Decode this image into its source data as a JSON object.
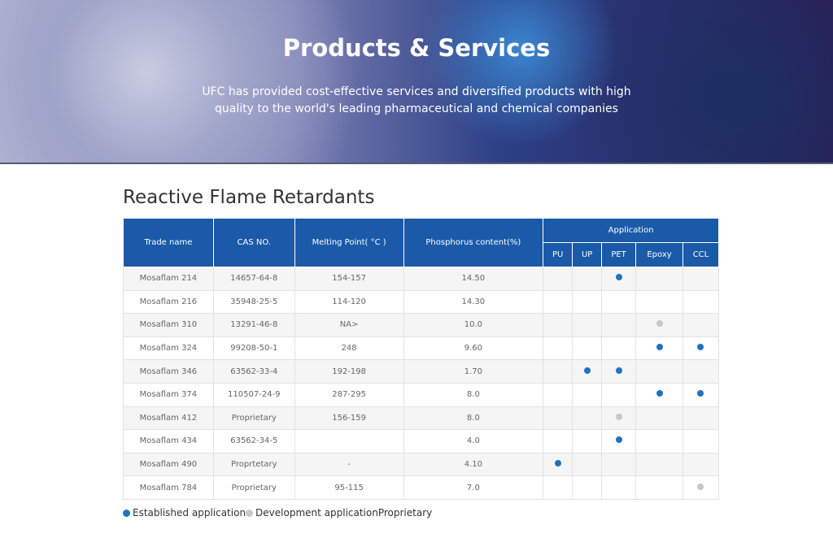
{
  "header": {
    "title": "Products & Services",
    "subtitle_lines": [
      "UFC has provided cost-effective services and diversified products with high",
      "quality to the world's leading pharmaceutical and chemical companies"
    ]
  },
  "section": {
    "title": "Reactive Flame Retardants"
  },
  "table": {
    "columns": [
      "Trade name",
      "CAS NO.",
      "Melting Point( °C )",
      "Phosphorus content(%)"
    ],
    "application_header": "Application",
    "applications": [
      "PU",
      "UP",
      "PET",
      "Epoxy",
      "CCL"
    ],
    "rows": [
      {
        "cells": [
          "Mosaflam 214",
          "14657-64-8",
          "154-157",
          "14.50"
        ],
        "apps": [
          null,
          null,
          0,
          null,
          null
        ]
      },
      {
        "cells": [
          "Mosaflam 216",
          "35948-25-5",
          "114-120",
          "14.30"
        ],
        "apps": [
          null,
          null,
          null,
          null,
          null
        ]
      },
      {
        "cells": [
          "Mosaflam 310",
          "13291-46-8",
          "NA>",
          "10.0"
        ],
        "apps": [
          null,
          null,
          null,
          1,
          null
        ]
      },
      {
        "cells": [
          "Mosaflam 324",
          "99208-50-1",
          "248",
          "9.60"
        ],
        "apps": [
          null,
          null,
          null,
          0,
          0
        ]
      },
      {
        "cells": [
          "Mosaflam 346",
          "63562-33-4",
          "192-198",
          "1.70"
        ],
        "apps": [
          null,
          0,
          0,
          null,
          null
        ]
      },
      {
        "cells": [
          "Mosaflam 374",
          "110507-24-9",
          "287-295",
          "8.0"
        ],
        "apps": [
          null,
          null,
          null,
          0,
          0
        ]
      },
      {
        "cells": [
          "Mosaflam 412",
          "Proprietary",
          "156-159",
          "8.0"
        ],
        "apps": [
          null,
          null,
          1,
          null,
          null
        ]
      },
      {
        "cells": [
          "Mosaflam 434",
          "63562-34-5",
          null,
          "4.0"
        ],
        "apps": [
          null,
          null,
          0,
          null,
          null
        ]
      },
      {
        "cells": [
          "Mosaflam 490",
          "Proprtetary",
          "-",
          "4.10"
        ],
        "apps": [
          0,
          null,
          null,
          null,
          null
        ]
      },
      {
        "cells": [
          "Mosaflam 784",
          "Proprietary",
          "95-115",
          "7.0"
        ],
        "apps": [
          null,
          null,
          null,
          null,
          1
        ]
      }
    ]
  },
  "legend": {
    "items": [
      {
        "label": "Established application",
        "color": "#1e73be"
      },
      {
        "label": "Development application",
        "color": "#c8c8c8"
      }
    ],
    "note": "Proprietary"
  }
}
